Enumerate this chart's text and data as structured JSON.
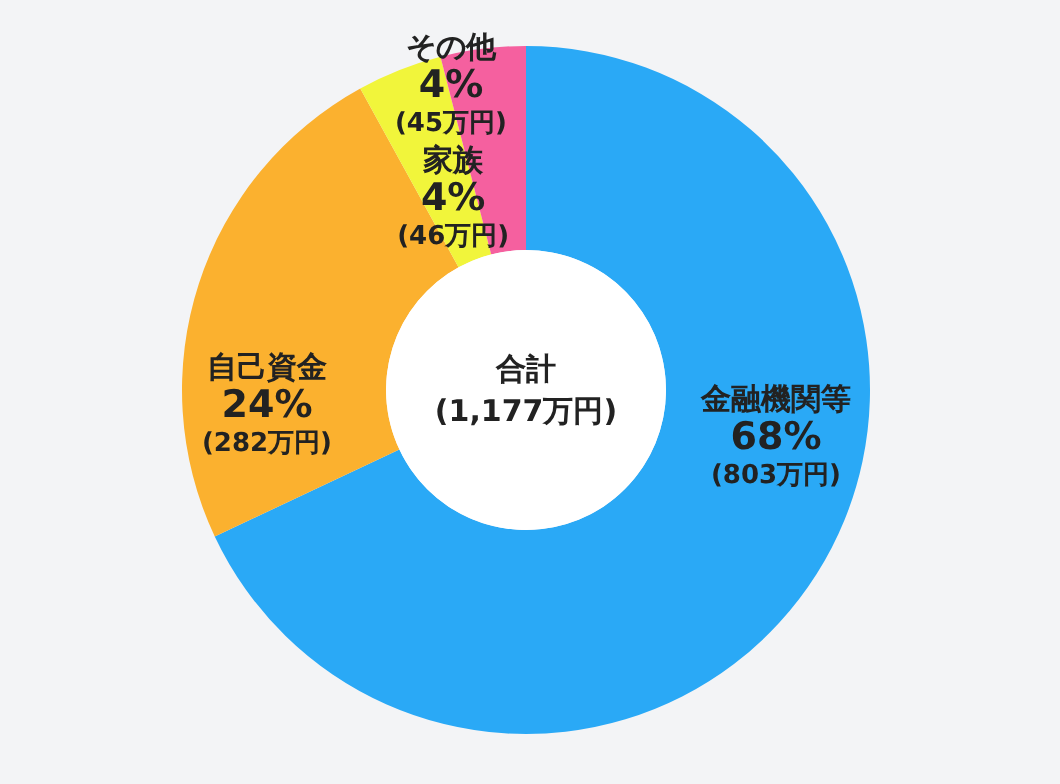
{
  "chart_data": {
    "type": "donut",
    "categories": [
      "金融機関等",
      "自己資金",
      "家族",
      "その他"
    ],
    "values": [
      68,
      24,
      4,
      4
    ],
    "value_labels": [
      "68%",
      "24%",
      "4%",
      "4%"
    ],
    "colors": [
      "#2aa9f6",
      "#fbb12f",
      "#f1f53b",
      "#f5609f"
    ],
    "annotations": [
      "合計",
      "(1,177万円)",
      {
        "text": "(803万円)",
        "x": "金融機関等"
      },
      {
        "text": "(282万円)",
        "x": "自己資金"
      },
      {
        "text": "(46万円)",
        "x": "家族"
      },
      {
        "text": "(45万円)",
        "x": "その他"
      }
    ]
  }
}
